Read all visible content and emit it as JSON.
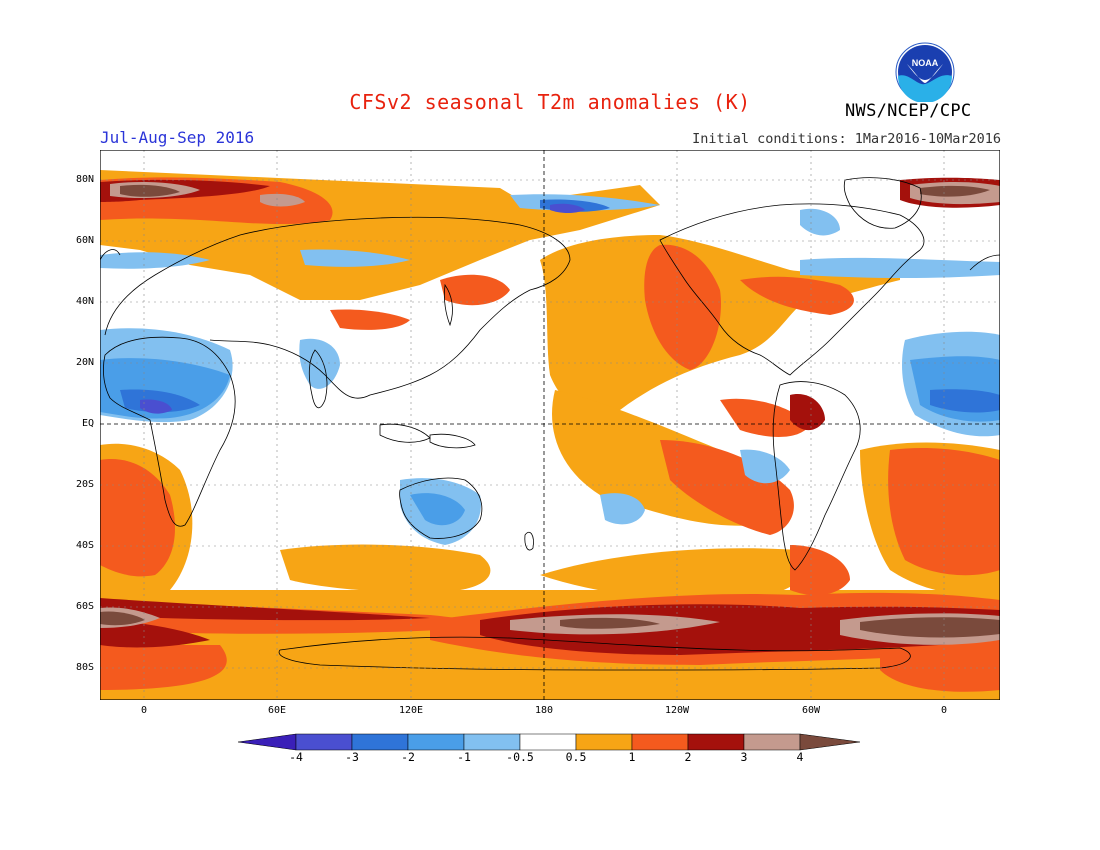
{
  "title": "CFSv2 seasonal T2m anomalies (K)",
  "season": "Jul-Aug-Sep 2016",
  "initial_conditions": "Initial conditions: 1Mar2016-10Mar2016",
  "agency": "NWS/NCEP/CPC",
  "logo_text": "NOAA",
  "colors": {
    "title": "#e8220e",
    "season": "#2b35d8",
    "neg4": "#3a1fb8",
    "neg3": "#4a4fd0",
    "neg2": "#2f74d8",
    "neg1": "#4a9ee8",
    "neg05": "#82c0f0",
    "neutral": "#ffffff",
    "pos05": "#f7a515",
    "pos1": "#f45a1e",
    "pos2": "#dc2a10",
    "pos3": "#a4110c",
    "pos4": "#c49a8e",
    "pos4plus": "#7a4a3c",
    "land_outline": "#000000"
  },
  "lat_labels": [
    "80N",
    "60N",
    "40N",
    "20N",
    "EQ",
    "20S",
    "40S",
    "60S",
    "80S"
  ],
  "lon_labels": [
    "0",
    "60E",
    "120E",
    "180",
    "120W",
    "60W",
    "0"
  ],
  "colorbar_labels": [
    "-4",
    "-3",
    "-2",
    "-1",
    "-0.5",
    "0.5",
    "1",
    "2",
    "3",
    "4"
  ]
}
